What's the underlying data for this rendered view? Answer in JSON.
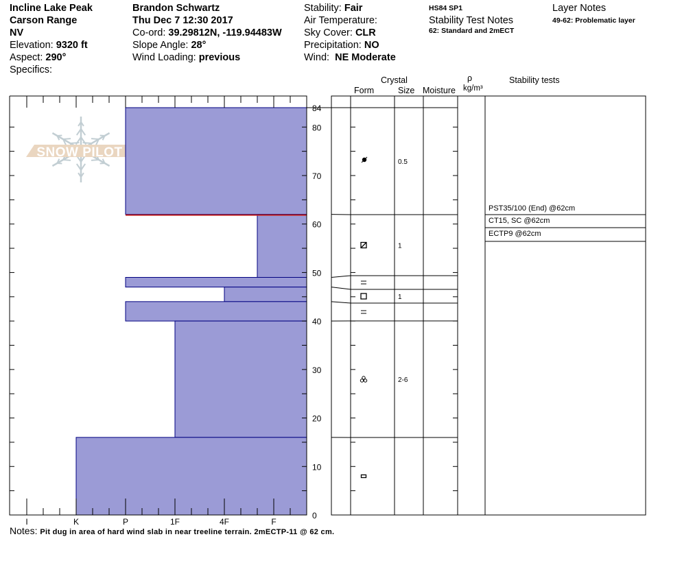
{
  "header": {
    "location": "Incline Lake Peak",
    "range": "Carson Range",
    "state": "NV",
    "elevation_label": "Elevation:",
    "elevation": "9320 ft",
    "aspect_label": "Aspect:",
    "aspect": "290°",
    "specifics_label": "Specifics:",
    "observer": "Brandon Schwartz",
    "datetime": "Thu Dec 7 12:30 2017",
    "coord_label": "Co-ord:",
    "coord": "39.29812N, -119.94483W",
    "slope_label": "Slope Angle:",
    "slope": "28°",
    "wind_loading_label": "Wind Loading:",
    "wind_loading": "previous",
    "stability_label": "Stability:",
    "stability": "Fair",
    "air_temp_label": "Air Temperature:",
    "sky_label": "Sky Cover:",
    "sky": "CLR",
    "precip_label": "Precipitation:",
    "precip": "NO",
    "wind_label": "Wind:",
    "wind": "NE Moderate",
    "hs": "HS84  SP1",
    "stability_notes_title": "Stability Test Notes",
    "stability_notes": "62: Standard and 2mECT",
    "layer_notes_title": "Layer Notes",
    "layer_notes": "49-62: Problematic layer"
  },
  "columns": {
    "crystal": "Crystal",
    "form": "Form",
    "size": "Size",
    "moisture": "Moisture",
    "rho": "ρ",
    "density_unit": "kg/m³",
    "stability_tests": "Stability tests"
  },
  "logo_text": "SNOW PILOT",
  "notes_label": "Notes:",
  "notes": "Pit dug in area of hard wind slab in near treeline terrain. 2mECTP-11 @ 62 cm.",
  "chart_data": {
    "type": "snow-profile",
    "y_axis": {
      "unit": "cm",
      "range": [
        0,
        84
      ],
      "tick_labels": [
        84,
        80,
        70,
        60,
        50,
        40,
        30,
        20,
        10,
        0
      ]
    },
    "x_axis": {
      "tick_labels": [
        "I",
        "K",
        "P",
        "1F",
        "4F",
        "F"
      ]
    },
    "bar_color": "#9b9bd6",
    "bar_edge_color": "#000080",
    "problem_line_color": "#c02020",
    "layers": [
      {
        "top": 84,
        "bottom": 62,
        "hardness": "P",
        "form": "precip-decomposed",
        "size": "0.5"
      },
      {
        "top": 62,
        "bottom": 49,
        "hardness": "F+",
        "form": "faceted-rounded",
        "size": "1"
      },
      {
        "top": 49,
        "bottom": 47,
        "hardness": "P",
        "form": "ice-crust",
        "size": ""
      },
      {
        "top": 47,
        "bottom": 44,
        "hardness": "4F",
        "form": "facets",
        "size": "1"
      },
      {
        "top": 44,
        "bottom": 40,
        "hardness": "P",
        "form": "ice-crust",
        "size": ""
      },
      {
        "top": 40,
        "bottom": 16,
        "hardness": "1F",
        "form": "melt-freeze-clusters",
        "size": "2-6"
      },
      {
        "top": 16,
        "bottom": 0,
        "hardness": "K",
        "form": "rounded-grains",
        "size": ""
      }
    ],
    "problem_layer_depth": 62,
    "stability_tests": [
      "PST35/100 (End) @62cm",
      "CT15, SC @62cm",
      "ECTP9 @62cm"
    ]
  }
}
